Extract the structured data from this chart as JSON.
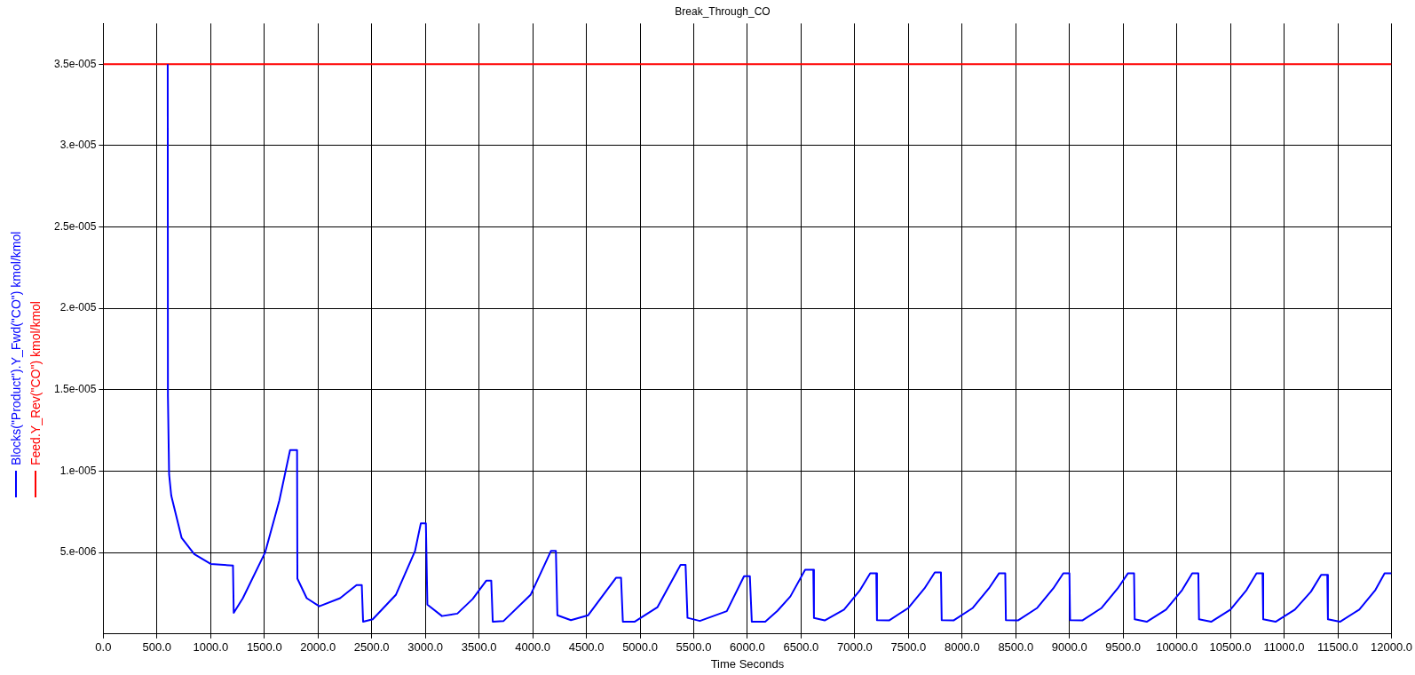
{
  "chart_data": {
    "type": "line",
    "title": "Break_Through_CO",
    "xlabel": "Time Seconds",
    "xlim": [
      0,
      12000
    ],
    "xticks": [
      {
        "value": 0,
        "label": "0.0"
      },
      {
        "value": 500,
        "label": "500.0"
      },
      {
        "value": 1000,
        "label": "1000.0"
      },
      {
        "value": 1500,
        "label": "1500.0"
      },
      {
        "value": 2000,
        "label": "2000.0"
      },
      {
        "value": 2500,
        "label": "2500.0"
      },
      {
        "value": 3000,
        "label": "3000.0"
      },
      {
        "value": 3500,
        "label": "3500.0"
      },
      {
        "value": 4000,
        "label": "4000.0"
      },
      {
        "value": 4500,
        "label": "4500.0"
      },
      {
        "value": 5000,
        "label": "5000.0"
      },
      {
        "value": 5500,
        "label": "5500.0"
      },
      {
        "value": 6000,
        "label": "6000.0"
      },
      {
        "value": 6500,
        "label": "6500.0"
      },
      {
        "value": 7000,
        "label": "7000.0"
      },
      {
        "value": 7500,
        "label": "7500.0"
      },
      {
        "value": 8000,
        "label": "8000.0"
      },
      {
        "value": 8500,
        "label": "8500.0"
      },
      {
        "value": 9000,
        "label": "9000.0"
      },
      {
        "value": 9500,
        "label": "9500.0"
      },
      {
        "value": 10000,
        "label": "10000.0"
      },
      {
        "value": 10500,
        "label": "10500.0"
      },
      {
        "value": 11000,
        "label": "11000.0"
      },
      {
        "value": 11500,
        "label": "11500.0"
      },
      {
        "value": 12000,
        "label": "12000.0"
      }
    ],
    "ylim": [
      0,
      3.75e-05
    ],
    "yticks": [
      {
        "value": 5e-06,
        "label": "5.e-006"
      },
      {
        "value": 1e-05,
        "label": "1.e-005"
      },
      {
        "value": 1.5e-05,
        "label": "1.5e-005"
      },
      {
        "value": 2e-05,
        "label": "2.e-005"
      },
      {
        "value": 2.5e-05,
        "label": "2.5e-005"
      },
      {
        "value": 3e-05,
        "label": "3.e-005"
      },
      {
        "value": 3.5e-05,
        "label": "3.5e-005"
      }
    ],
    "grid": true,
    "legend": "left",
    "line_style": "solid",
    "series": [
      {
        "name": "Blocks(\"Product\").Y_Fwd(\"CO\") kmol/kmol",
        "color": "#0000ff",
        "x": [
          600,
          602,
          613,
          633,
          730,
          847,
          1000,
          1208,
          1215,
          1300,
          1507,
          1640,
          1740,
          1805,
          1808,
          1895,
          2012,
          2206,
          2359,
          2408,
          2420,
          2510,
          2725,
          2904,
          2958,
          3005,
          3019,
          3155,
          3298,
          3441,
          3567,
          3614,
          3628,
          3729,
          3980,
          4170,
          4216,
          4230,
          4356,
          4517,
          4776,
          4823,
          4840,
          4948,
          5163,
          5378,
          5424,
          5442,
          5557,
          5808,
          5969,
          6023,
          6041,
          6166,
          6280,
          6400,
          6538,
          6614,
          6620,
          6720,
          6900,
          7050,
          7144,
          7201,
          7207,
          7320,
          7500,
          7650,
          7746,
          7803,
          7810,
          7920,
          8100,
          8250,
          8345,
          8402,
          8408,
          8520,
          8700,
          8850,
          8943,
          9000,
          9006,
          9120,
          9300,
          9450,
          9546,
          9602,
          9608,
          9720,
          9900,
          10050,
          10144,
          10201,
          10207,
          10320,
          10500,
          10650,
          10743,
          10799,
          10805,
          10920,
          11100,
          11250,
          11345,
          11402,
          11408,
          11520,
          11700,
          11850,
          11936,
          12000
        ],
        "values": [
          3.5e-05,
          1.46e-05,
          9.8e-06,
          8.5e-06,
          5.9e-06,
          4.9e-06,
          4.3e-06,
          4.2e-06,
          1.3e-06,
          2.2e-06,
          5e-06,
          8.2e-06,
          1.13e-05,
          1.13e-05,
          3.4e-06,
          2.2e-06,
          1.7e-06,
          2.2e-06,
          3e-06,
          3e-06,
          7.5e-07,
          9e-07,
          2.4e-06,
          5.1e-06,
          6.8e-06,
          6.8e-06,
          1.8e-06,
          1.1e-06,
          1.25e-06,
          2.15e-06,
          3.27e-06,
          3.27e-06,
          7.5e-07,
          8e-07,
          2.4e-06,
          5.1e-06,
          5.1e-06,
          1.15e-06,
          8.5e-07,
          1.15e-06,
          3.45e-06,
          3.45e-06,
          7.5e-07,
          7.5e-07,
          1.65e-06,
          4.25e-06,
          4.25e-06,
          9.9e-07,
          8e-07,
          1.4e-06,
          3.55e-06,
          3.55e-06,
          7.5e-07,
          7.5e-07,
          1.42e-06,
          2.3e-06,
          3.94e-06,
          3.94e-06,
          9.8e-07,
          8.3e-07,
          1.5e-06,
          2.7e-06,
          3.73e-06,
          3.73e-06,
          8.5e-07,
          8.3e-07,
          1.6e-06,
          2.8e-06,
          3.78e-06,
          3.78e-06,
          8.5e-07,
          8.3e-07,
          1.6e-06,
          2.8e-06,
          3.73e-06,
          3.73e-06,
          8.5e-07,
          8.3e-07,
          1.6e-06,
          2.8e-06,
          3.73e-06,
          3.73e-06,
          8.5e-07,
          8.3e-07,
          1.6e-06,
          2.8e-06,
          3.73e-06,
          3.73e-06,
          9e-07,
          7.5e-07,
          1.5e-06,
          2.7e-06,
          3.73e-06,
          3.73e-06,
          9e-07,
          7.5e-07,
          1.5e-06,
          2.7e-06,
          3.73e-06,
          3.73e-06,
          9e-07,
          7.5e-07,
          1.5e-06,
          2.6e-06,
          3.63e-06,
          3.63e-06,
          9e-07,
          7.5e-07,
          1.5e-06,
          2.7e-06,
          3.73e-06,
          3.73e-06
        ]
      },
      {
        "name": "Feed.Y_Rev(\"CO\") kmol/kmol",
        "color": "#ff0000",
        "x": [
          0,
          12000
        ],
        "values": [
          3.5e-05,
          3.5e-05
        ]
      }
    ]
  }
}
